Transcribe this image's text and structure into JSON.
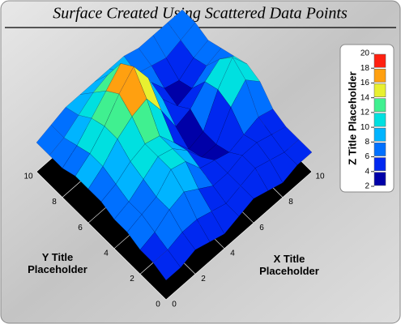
{
  "chart_data": {
    "type": "surface",
    "title": "Surface Created Using Scattered Data Points",
    "x_label": "X Title Placeholder",
    "y_label": "Y Title Placeholder",
    "z_label": "Z Title Placeholder",
    "x": [
      0,
      1,
      2,
      3,
      4,
      5,
      6,
      7,
      8,
      9,
      10
    ],
    "y": [
      0,
      1,
      2,
      3,
      4,
      5,
      6,
      7,
      8,
      9,
      10
    ],
    "z": [
      [
        4,
        4,
        5,
        4,
        3,
        4,
        5,
        4,
        3,
        4,
        4
      ],
      [
        5,
        5,
        6,
        6,
        5,
        4,
        5,
        6,
        5,
        4,
        4
      ],
      [
        5,
        6,
        8,
        9,
        7,
        5,
        5,
        6,
        6,
        5,
        4
      ],
      [
        6,
        7,
        8,
        11,
        10,
        6,
        5,
        4,
        5,
        6,
        5
      ],
      [
        6,
        7,
        9,
        11,
        10,
        7,
        3,
        3,
        8,
        11,
        8
      ],
      [
        7,
        8,
        10,
        11,
        10,
        6,
        2,
        3,
        9,
        13,
        9
      ],
      [
        7,
        9,
        12,
        14,
        15,
        10,
        4,
        5,
        8,
        10,
        8
      ],
      [
        7,
        9,
        12,
        16,
        19,
        14,
        7,
        3,
        4,
        6,
        7
      ],
      [
        6,
        8,
        11,
        14,
        17,
        13,
        8,
        4,
        3,
        5,
        6
      ],
      [
        6,
        7,
        9,
        11,
        12,
        10,
        7,
        6,
        5,
        6,
        7
      ],
      [
        6,
        7,
        8,
        8,
        8,
        8,
        8,
        7,
        7,
        7,
        7
      ]
    ],
    "xlim": [
      0,
      10
    ],
    "ylim": [
      0,
      10
    ],
    "xticks": [
      0,
      2,
      4,
      6,
      8,
      10
    ],
    "yticks": [
      0,
      2,
      4,
      6,
      8,
      10
    ],
    "zlim": [
      2,
      20
    ],
    "zticks": [
      2,
      4,
      6,
      8,
      10,
      12,
      14,
      16,
      18,
      20
    ],
    "colors": [
      "#0000a8",
      "#0028f0",
      "#0070ff",
      "#00b4ff",
      "#00e0e0",
      "#40f090",
      "#e8f030",
      "#ffa010",
      "#ff2010"
    ]
  }
}
